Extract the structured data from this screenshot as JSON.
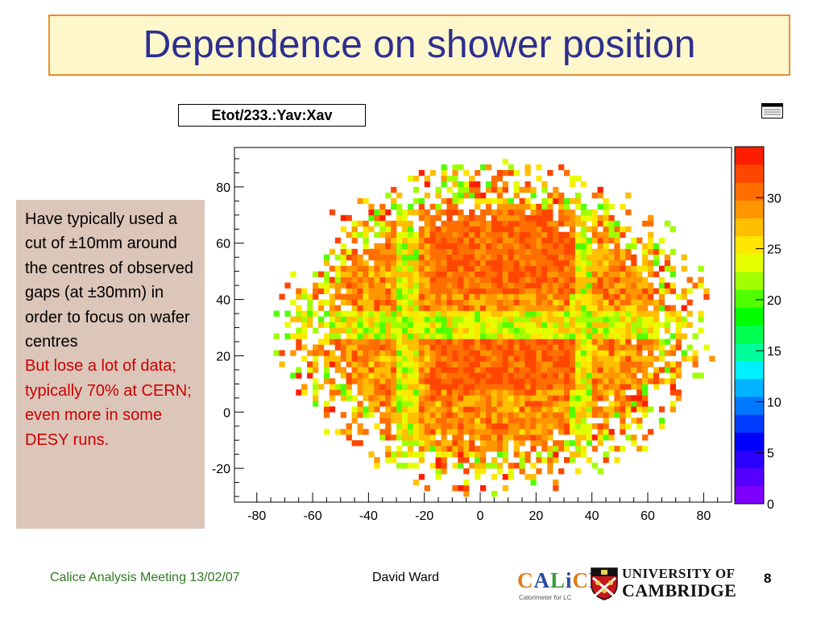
{
  "slide": {
    "title": "Dependence on shower position",
    "plot_title": "Etot/233.:Yav:Xav",
    "note": {
      "black": "Have typically used a cut of ±10mm around the centres of observed gaps (at ±30mm) in order to focus on wafer centres",
      "red": "But lose a lot of data; typically 70% at CERN; even more in some DESY runs."
    },
    "footer": {
      "left": "Calice Analysis Meeting 13/02/07",
      "center": "David Ward",
      "page": "8"
    },
    "logos": {
      "calice_text": "CALiCE",
      "calice_subtitle": "Calorimeter for LC",
      "cambridge_line1": "UNIVERSITY OF",
      "cambridge_line2": "CAMBRIDGE"
    }
  },
  "chart_data": {
    "type": "heatmap",
    "title": "Etot/233.:Yav:Xav",
    "xlabel": "",
    "ylabel": "",
    "xlim": [
      -88,
      90
    ],
    "ylim": [
      -32,
      94
    ],
    "x_ticks": [
      "-80",
      "-60",
      "-40",
      "-20",
      "0",
      "20",
      "40",
      "60",
      "80"
    ],
    "y_ticks": [
      "-20",
      "0",
      "20",
      "40",
      "60",
      "80"
    ],
    "z_range": [
      0,
      35
    ],
    "z_ticks": [
      "0",
      "5",
      "10",
      "15",
      "20",
      "25",
      "30"
    ],
    "palette": [
      "#7f00ff",
      "#5500ff",
      "#2a00ff",
      "#0000ff",
      "#003cff",
      "#0078ff",
      "#00b4ff",
      "#00f0ff",
      "#00ff9b",
      "#00ff50",
      "#00ff00",
      "#50ff00",
      "#a0ff00",
      "#e6ff00",
      "#ffe600",
      "#ffbe00",
      "#ff9600",
      "#ff6e00",
      "#ff4600",
      "#ff1e00"
    ],
    "description_regions": {
      "dense_wafers": [
        {
          "x": [
            -18,
            32
          ],
          "y": [
            41,
            71
          ]
        },
        {
          "x": [
            -18,
            32
          ],
          "y": [
            7,
            26
          ]
        }
      ],
      "horizontal_gap_y": 31,
      "vertical_gap_x": [
        -26,
        36
      ],
      "cloud_center": [
        5,
        30
      ],
      "cloud_radius": [
        80,
        60
      ],
      "typical_z_in_wafers": 31,
      "typical_z_in_gaps": 24
    }
  }
}
